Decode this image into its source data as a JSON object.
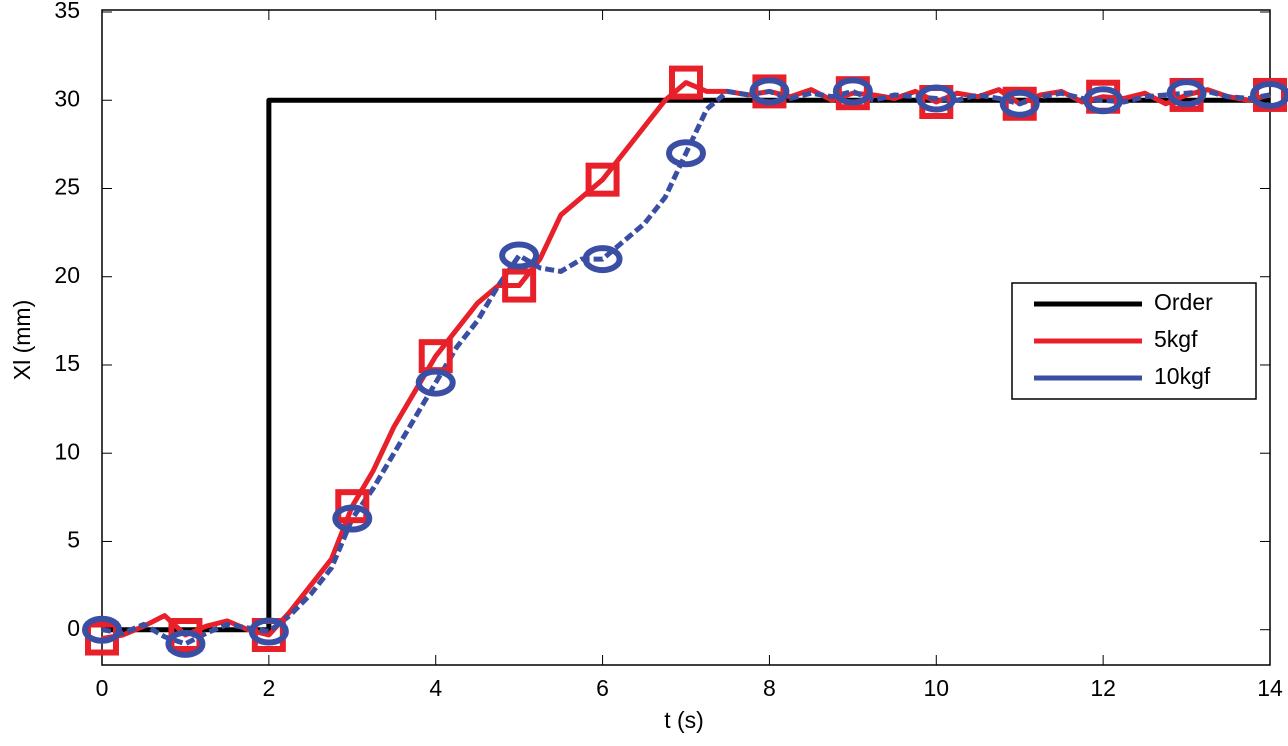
{
  "chart_data": {
    "type": "line",
    "xlabel": "t (s)",
    "ylabel": "Xl (mm)",
    "x": [
      0,
      0.25,
      0.5,
      0.75,
      1,
      1.25,
      1.5,
      1.75,
      2,
      2.25,
      2.5,
      2.75,
      3,
      3.25,
      3.5,
      3.75,
      4,
      4.25,
      4.5,
      4.75,
      5,
      5.25,
      5.5,
      5.75,
      6,
      6.25,
      6.5,
      6.75,
      7,
      7.25,
      7.5,
      7.75,
      8,
      8.25,
      8.5,
      8.75,
      9,
      9.25,
      9.5,
      9.75,
      10,
      10.25,
      10.5,
      10.75,
      11,
      11.25,
      11.5,
      11.75,
      12,
      12.25,
      12.5,
      12.75,
      13,
      13.25,
      13.5,
      13.75,
      14
    ],
    "series": [
      {
        "name": "Order",
        "color": "#000000",
        "x": [
          0,
          2,
          2,
          14
        ],
        "values": [
          0,
          0,
          30,
          30
        ]
      },
      {
        "name": "5kgf",
        "color": "#e8202a",
        "marker": "square",
        "dashed": false,
        "values": [
          -0.5,
          -0.3,
          0.2,
          0.8,
          -0.3,
          0.2,
          0.5,
          0,
          -0.3,
          1,
          2.5,
          4,
          7,
          9,
          11.5,
          13.5,
          15.5,
          17,
          18.5,
          19.5,
          19.5,
          21,
          23.5,
          24.5,
          25.5,
          27,
          28.5,
          30,
          31,
          30.5,
          30.5,
          30.3,
          30.5,
          30.2,
          30.6,
          30.0,
          30.4,
          30.3,
          30.1,
          30.5,
          29.9,
          30.4,
          30.2,
          30.6,
          29.8,
          30.3,
          30.5,
          29.9,
          30.2,
          30.1,
          30.4,
          29.8,
          30.3,
          30.6,
          30.2,
          30.0,
          30.3
        ]
      },
      {
        "name": "10kgf",
        "color": "#3a4fa3",
        "marker": "circle",
        "dashed": true,
        "values": [
          0,
          -0.2,
          0.3,
          -0.4,
          -0.8,
          -0.2,
          0.3,
          0.1,
          -0.1,
          0.8,
          2,
          3.5,
          6.3,
          8,
          10,
          12,
          14,
          16,
          17.5,
          19.5,
          21.2,
          20.5,
          20.3,
          21,
          21,
          22,
          23,
          24.5,
          27,
          29.5,
          30.5,
          30.3,
          30.5,
          30.1,
          30.4,
          30.2,
          30.5,
          30.0,
          30.3,
          30.2,
          30.1,
          30.0,
          30.3,
          30.1,
          29.8,
          30.2,
          30.4,
          30.1,
          30.0,
          29.9,
          30.2,
          30.3,
          30.4,
          30.5,
          30.2,
          30.1,
          30.3
        ]
      }
    ],
    "xlim": [
      0,
      14
    ],
    "xticks": [
      0,
      2,
      4,
      6,
      8,
      10,
      12,
      14
    ],
    "ylim": [
      -2,
      35
    ],
    "yticks": [
      0,
      5,
      10,
      15,
      20,
      25,
      30,
      35
    ],
    "legend": "right"
  }
}
